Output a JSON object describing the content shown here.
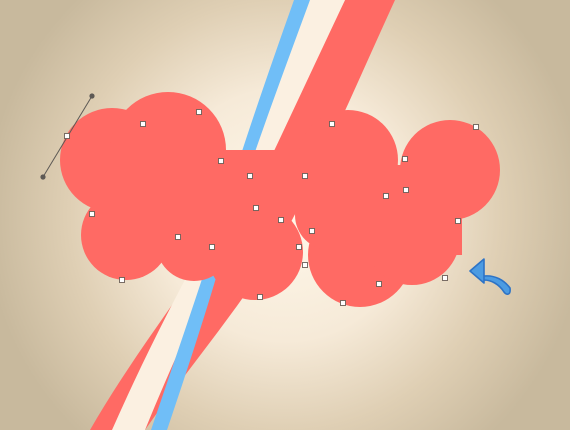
{
  "canvas": {
    "background_color": "#c8b99d",
    "glow_color": "#fff8ea",
    "shape_color": "#ff6a64",
    "ribbon_colors": {
      "red": "#ff6a64",
      "cream": "#fbf0e1",
      "blue": "#70bef7"
    },
    "anchor_point_color": "#ffffff",
    "handle_color": "#5d5955"
  },
  "tools": {
    "undo_icon": "undo-curved-arrow-icon",
    "undo_color": "#4c9be2"
  }
}
